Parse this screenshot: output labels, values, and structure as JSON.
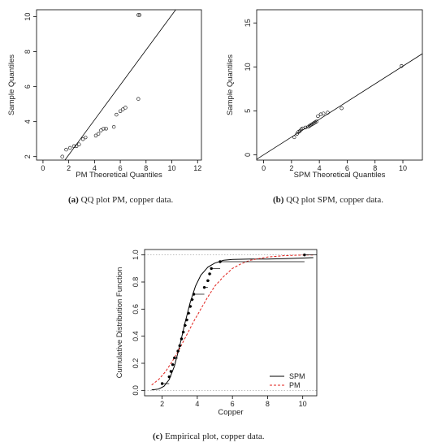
{
  "panels": [
    {
      "id": "a",
      "caption": {
        "tag": "(a)",
        "text": "QQ plot PM, copper data."
      }
    },
    {
      "id": "b",
      "caption": {
        "tag": "(b)",
        "text": "QQ plot SPM, copper data."
      }
    },
    {
      "id": "c",
      "caption": {
        "tag": "(c)",
        "text": "Empirical plot, copper data."
      }
    }
  ],
  "chart_data": [
    {
      "type": "scatter",
      "title": "",
      "xlabel": "PM Theoretical Quantiles",
      "ylabel": "Sample Quantiles",
      "xlim": [
        -0.5,
        12.3
      ],
      "ylim": [
        1.8,
        10.4
      ],
      "xticks": [
        0,
        2,
        4,
        6,
        8,
        10,
        12
      ],
      "yticks": [
        2,
        4,
        6,
        8,
        10
      ],
      "reference_line": {
        "x1": 1.7,
        "y1": 1.8,
        "x2": 10.3,
        "y2": 10.4
      },
      "points": {
        "x": [
          1.5,
          1.8,
          2.1,
          2.4,
          2.6,
          2.8,
          3.1,
          3.3,
          4.1,
          4.3,
          4.5,
          4.7,
          4.9,
          5.5,
          5.7,
          6.0,
          6.2,
          6.4,
          7.4,
          7.4,
          7.5
        ],
        "y": [
          2.0,
          2.4,
          2.5,
          2.6,
          2.6,
          2.7,
          3.0,
          3.1,
          3.2,
          3.3,
          3.5,
          3.6,
          3.6,
          3.7,
          4.4,
          4.6,
          4.7,
          4.8,
          5.3,
          10.1,
          10.1
        ]
      }
    },
    {
      "type": "scatter",
      "title": "",
      "xlabel": "SPM Theoretical Quantiles",
      "ylabel": "Sample Quantiles",
      "xlim": [
        -0.5,
        11.4
      ],
      "ylim": [
        -0.6,
        16.5
      ],
      "xticks": [
        0,
        2,
        4,
        6,
        8,
        10
      ],
      "yticks": [
        0,
        5,
        10,
        15
      ],
      "reference_line": {
        "x1": -0.5,
        "y1": -0.5,
        "x2": 11.4,
        "y2": 11.5
      },
      "points": {
        "x": [
          2.2,
          2.4,
          2.5,
          2.6,
          2.7,
          2.8,
          3.0,
          3.2,
          3.3,
          3.4,
          3.5,
          3.6,
          3.7,
          3.8,
          3.9,
          4.1,
          4.3,
          4.6,
          5.6,
          9.9
        ],
        "y": [
          2.0,
          2.4,
          2.6,
          2.7,
          2.9,
          3.0,
          3.1,
          3.2,
          3.3,
          3.4,
          3.5,
          3.6,
          3.7,
          3.8,
          4.4,
          4.6,
          4.7,
          4.8,
          5.3,
          10.1
        ]
      }
    },
    {
      "type": "line",
      "title": "",
      "xlabel": "Copper",
      "ylabel": "Cumulative Distribution Function",
      "xlim": [
        1.0,
        10.8
      ],
      "ylim": [
        -0.04,
        1.04
      ],
      "xticks": [
        2,
        4,
        6,
        8,
        10
      ],
      "yticks": [
        0.0,
        0.2,
        0.4,
        0.6,
        0.8,
        1.0
      ],
      "yticklabels": [
        "0.0",
        "0.2",
        "0.4",
        "0.6",
        "0.8",
        "1.0"
      ],
      "grid": "dotted horizontal at 0 and 1",
      "legend": {
        "placement": "bottom-right"
      },
      "series": [
        {
          "name": "SPM",
          "style": "solid",
          "color": "#000000",
          "x": [
            1.4,
            1.8,
            2.1,
            2.4,
            2.7,
            3.0,
            3.3,
            3.6,
            3.9,
            4.2,
            4.6,
            5.0,
            5.5,
            6.0,
            7.0,
            8.0,
            9.0,
            10.0,
            10.6
          ],
          "y": [
            0.003,
            0.01,
            0.03,
            0.08,
            0.18,
            0.33,
            0.5,
            0.65,
            0.77,
            0.85,
            0.91,
            0.94,
            0.96,
            0.967,
            0.97,
            0.97,
            0.973,
            0.977,
            0.98
          ]
        },
        {
          "name": "PM",
          "style": "dashed",
          "color": "#e0201b",
          "x": [
            1.4,
            1.8,
            2.2,
            2.6,
            3.0,
            3.4,
            3.8,
            4.2,
            4.6,
            5.0,
            5.5,
            6.0,
            6.5,
            7.0,
            8.0,
            9.0,
            10.0,
            10.6
          ],
          "y": [
            0.04,
            0.08,
            0.14,
            0.22,
            0.31,
            0.41,
            0.51,
            0.6,
            0.69,
            0.77,
            0.84,
            0.9,
            0.935,
            0.96,
            0.985,
            0.995,
            0.999,
            1.0
          ]
        }
      ],
      "empirical": {
        "x": [
          2.0,
          2.4,
          2.5,
          2.6,
          2.7,
          2.9,
          3.0,
          3.1,
          3.2,
          3.3,
          3.4,
          3.5,
          3.6,
          3.7,
          3.8,
          4.4,
          4.6,
          4.7,
          4.8,
          5.3,
          10.1
        ],
        "y": [
          0.05,
          0.1,
          0.14,
          0.19,
          0.24,
          0.29,
          0.33,
          0.38,
          0.43,
          0.48,
          0.52,
          0.57,
          0.62,
          0.67,
          0.71,
          0.76,
          0.81,
          0.86,
          0.9,
          0.95,
          1.0
        ]
      }
    }
  ]
}
